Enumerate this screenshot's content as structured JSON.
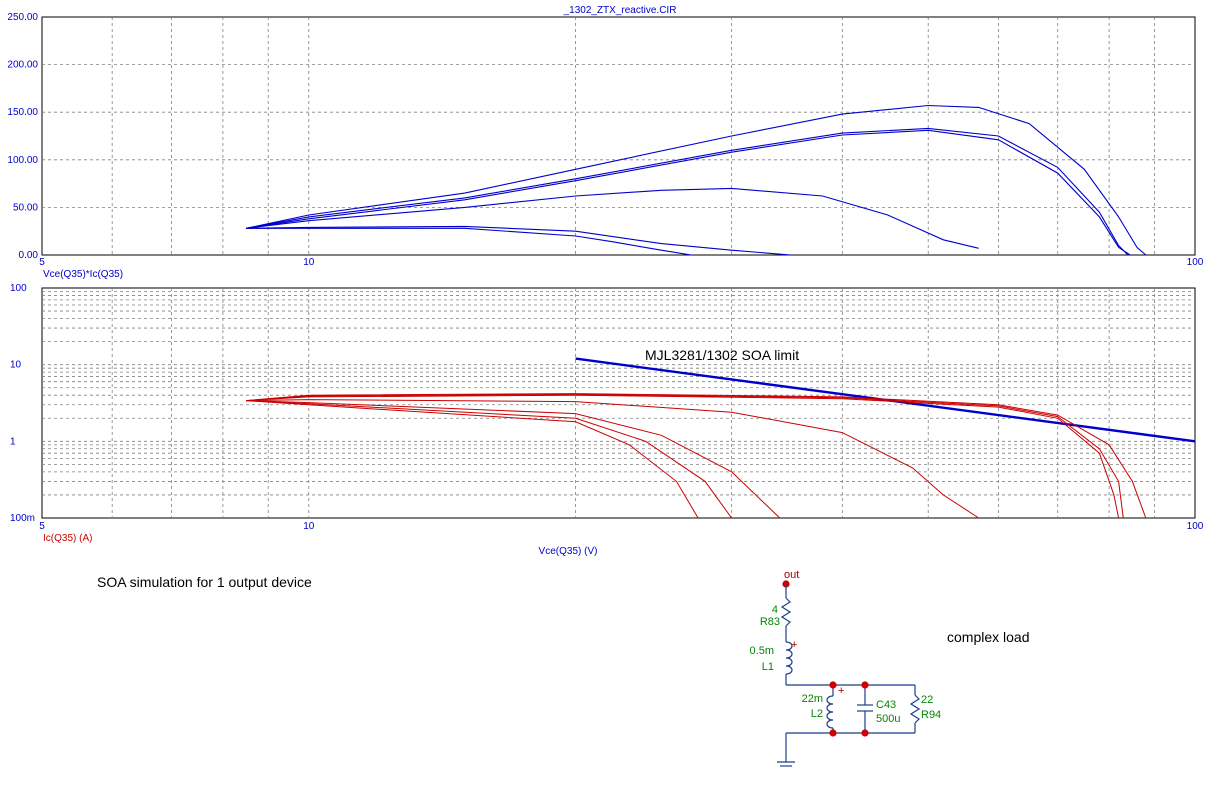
{
  "chart_data": [
    {
      "type": "line",
      "title": "_1302_ZTX_reactive.CIR",
      "ylabel": "Vce(Q35)*Ic(Q35)",
      "x_scale": "log",
      "xlim": [
        5,
        100
      ],
      "ylim": [
        0,
        250
      ],
      "x_tick_labels": [
        "5",
        "10",
        "100"
      ],
      "y_tick_labels": [
        "0.00",
        "50.00",
        "100.00",
        "150.00",
        "200.00",
        "250.00"
      ],
      "grid": true,
      "color": "#0000cc",
      "series": [
        {
          "x": [
            8.5,
            10,
            15,
            20,
            30,
            40,
            50,
            57,
            65,
            75,
            82,
            86,
            88
          ],
          "y": [
            28,
            42,
            65,
            90,
            125,
            148,
            157,
            155,
            138,
            90,
            40,
            8,
            0
          ]
        },
        {
          "x": [
            8.5,
            10,
            15,
            20,
            30,
            40,
            50,
            60,
            70,
            78,
            82,
            84
          ],
          "y": [
            28,
            40,
            60,
            80,
            110,
            128,
            133,
            125,
            92,
            45,
            10,
            0
          ]
        },
        {
          "x": [
            8.5,
            10,
            15,
            20,
            30,
            40,
            50,
            60,
            70,
            78,
            82,
            84.5
          ],
          "y": [
            28,
            38,
            58,
            78,
            108,
            126,
            131,
            121,
            86,
            40,
            8,
            0
          ]
        },
        {
          "x": [
            8.5,
            10,
            15,
            20,
            25,
            30,
            38,
            45,
            52,
            57
          ],
          "y": [
            28,
            36,
            50,
            62,
            68,
            70,
            62,
            42,
            16,
            7
          ]
        },
        {
          "x": [
            8.5,
            10,
            15,
            20,
            25,
            30,
            35
          ],
          "y": [
            28,
            29,
            30,
            25,
            12,
            5,
            0
          ]
        },
        {
          "x": [
            8.5,
            10,
            15,
            20,
            22,
            25,
            27
          ],
          "y": [
            28,
            28,
            28,
            20,
            14,
            5,
            0
          ]
        }
      ]
    },
    {
      "type": "line",
      "xlabel": "Vce(Q35) (V)",
      "ylabel": "Ic(Q35) (A)",
      "x_scale": "log",
      "y_scale": "log",
      "xlim": [
        5,
        100
      ],
      "ylim": [
        0.1,
        100
      ],
      "x_tick_labels": [
        "5",
        "10",
        "100"
      ],
      "y_tick_labels": [
        "100m",
        "1",
        "10",
        "100"
      ],
      "grid": true,
      "annotation": "MJL3281/1302 SOA limit",
      "series": [
        {
          "color": "#0000cc",
          "x": [
            20,
            100
          ],
          "y": [
            12,
            1
          ]
        },
        {
          "color": "#cc0000",
          "x": [
            8.5,
            10,
            20,
            40,
            60,
            70,
            80,
            85,
            88
          ],
          "y": [
            3.4,
            4,
            4.2,
            3.8,
            3,
            2.2,
            0.9,
            0.3,
            0.1
          ]
        },
        {
          "color": "#cc0000",
          "x": [
            8.5,
            10,
            20,
            40,
            60,
            70,
            78,
            82,
            83
          ],
          "y": [
            3.4,
            3.9,
            4.1,
            3.7,
            2.9,
            2.1,
            0.8,
            0.3,
            0.1
          ]
        },
        {
          "color": "#cc0000",
          "x": [
            8.5,
            10,
            20,
            40,
            60,
            70,
            78,
            81,
            82
          ],
          "y": [
            3.4,
            3.8,
            4,
            3.6,
            2.8,
            2,
            0.7,
            0.2,
            0.1
          ]
        },
        {
          "color": "#cc0000",
          "x": [
            8.5,
            10,
            20,
            30,
            40,
            48,
            52,
            57
          ],
          "y": [
            3.4,
            3.5,
            3.3,
            2.4,
            1.3,
            0.45,
            0.2,
            0.1
          ]
        },
        {
          "color": "#cc0000",
          "x": [
            8.5,
            10,
            20,
            25,
            30,
            34
          ],
          "y": [
            3.4,
            3.2,
            2.3,
            1.2,
            0.4,
            0.1
          ]
        },
        {
          "color": "#cc0000",
          "x": [
            8.5,
            10,
            20,
            24,
            28,
            30
          ],
          "y": [
            3.4,
            3.1,
            2,
            1,
            0.3,
            0.1
          ]
        },
        {
          "color": "#cc0000",
          "x": [
            8.5,
            10,
            20,
            23,
            26,
            27.5
          ],
          "y": [
            3.4,
            3,
            1.8,
            0.9,
            0.3,
            0.1
          ]
        }
      ]
    }
  ],
  "caption": "SOA simulation for 1 output device",
  "load_label": "complex load",
  "schematic": {
    "net": "out",
    "r83_value": "4",
    "r83_name": "R83",
    "l1_value": "0.5m",
    "l1_name": "L1",
    "l2_value": "22m",
    "l2_name": "L2",
    "c43_name": "C43",
    "c43_value": "500u",
    "r94_value": "22",
    "r94_name": "R94"
  }
}
